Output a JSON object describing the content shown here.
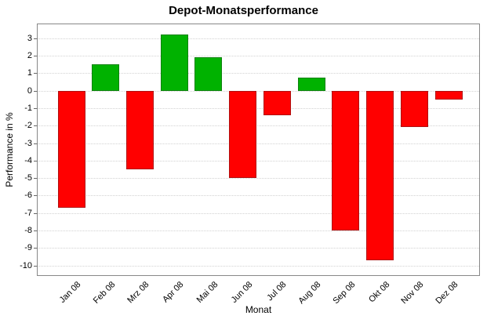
{
  "chart_data": {
    "type": "bar",
    "title": "Depot-Monatsperformance",
    "xlabel": "Monat",
    "ylabel": "Performance in %",
    "categories": [
      "Jan 08",
      "Feb 08",
      "Mrz 08",
      "Apr 08",
      "Mai 08",
      "Jun 08",
      "Jul 08",
      "Aug 08",
      "Sep 08",
      "Okt 08",
      "Nov 08",
      "Dez 08"
    ],
    "values": [
      -6.7,
      1.5,
      -4.5,
      3.2,
      1.9,
      -5.0,
      -1.4,
      0.75,
      -8.0,
      -9.7,
      -2.1,
      -0.5
    ],
    "yticks": [
      3,
      2,
      1,
      0,
      -1,
      -2,
      -3,
      -4,
      -5,
      -6,
      -7,
      -8,
      -9,
      -10
    ],
    "ylim": [
      -10.6,
      3.84
    ],
    "grid": "horizontal-dotted",
    "legend": "none",
    "positive_color": "#00b200",
    "negative_color": "#ff0000",
    "positive_border_color": "#0e820e",
    "negative_border_color": "#b01010",
    "grid_color": "#d2d2d2",
    "axis_color": "#888888"
  }
}
